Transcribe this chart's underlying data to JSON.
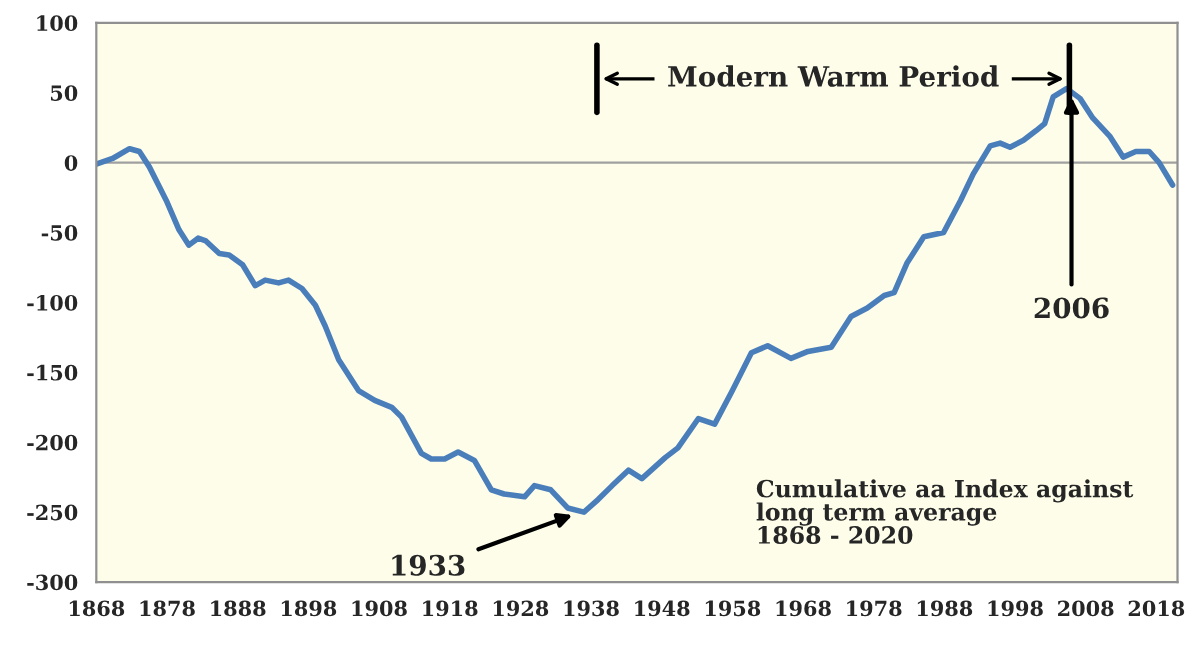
{
  "chart_data": {
    "type": "line",
    "x": [
      1868,
      1870.3,
      1872.7,
      1874.1,
      1875.5,
      1877.9,
      1879.7,
      1881.1,
      1882.4,
      1883.5,
      1885.4,
      1886.8,
      1888.7,
      1890.5,
      1891.9,
      1893.8,
      1895.2,
      1897.1,
      1899,
      1900.4,
      1902.3,
      1905.1,
      1907.4,
      1909.8,
      1911.2,
      1914,
      1915.4,
      1917.3,
      1919.2,
      1921.5,
      1923.9,
      1925.7,
      1928.6,
      1930,
      1932.3,
      1934.7,
      1937,
      1939,
      1941,
      1943.3,
      1945.2,
      1948.5,
      1950.3,
      1953.2,
      1955.5,
      1957.9,
      1960.7,
      1963,
      1966.3,
      1968.7,
      1972,
      1974.8,
      1977.1,
      1979.5,
      1980.9,
      1982.7,
      1985.1,
      1987.9,
      1990.3,
      1992.1,
      1994.5,
      1995.9,
      1997.3,
      1999.2,
      2001,
      2002.2,
      2003.4,
      2005.3,
      2007.2,
      2009,
      2011.4,
      2013.3,
      2015.1,
      2017,
      2018.4,
      2020.3
    ],
    "series": [
      {
        "color": "#4a7ebb",
        "values": [
          -1,
          3,
          10,
          8,
          -3,
          -27,
          -48,
          -59,
          -54,
          -56,
          -65,
          -66,
          -73,
          -88,
          -84,
          -86,
          -84,
          -90,
          -102,
          -117,
          -141,
          -163,
          -170,
          -175,
          -182,
          -208,
          -212,
          -212,
          -207,
          -213,
          -234,
          -237,
          -239,
          -231,
          -234,
          -247,
          -250,
          -241,
          -231,
          -220,
          -226,
          -211,
          -204,
          -183,
          -187,
          -164,
          -136,
          -131,
          -140,
          -135,
          -132,
          -110,
          -104,
          -95,
          -93,
          -72,
          -53,
          -50,
          -27,
          -8,
          12,
          14,
          11,
          16,
          23,
          28,
          47,
          53,
          46,
          32,
          19,
          4,
          8,
          8,
          0,
          -16
        ]
      }
    ],
    "xlim": [
      1868,
      2021
    ],
    "xticks": [
      1868,
      1878,
      1888,
      1898,
      1908,
      1918,
      1928,
      1938,
      1948,
      1958,
      1968,
      1978,
      1988,
      1998,
      2008,
      2018
    ],
    "ylim": [
      -300,
      100
    ],
    "yticks": [
      -300,
      -250,
      -200,
      -150,
      -100,
      -50,
      0,
      50,
      100
    ],
    "ref_lines": [
      {
        "axis": "y",
        "value": 0,
        "color": "#a0a0a0"
      }
    ],
    "annotations": [
      {
        "text": "1933",
        "x": 1936.5,
        "y": -250
      },
      {
        "text": "2006",
        "x": 2006,
        "y": 53
      },
      "Modern Warm Period",
      "Cumulative aa Index against\nlong term average\n1868 - 2020"
    ],
    "grid": false,
    "legend": false,
    "marker": "none",
    "line_style": "solid"
  }
}
